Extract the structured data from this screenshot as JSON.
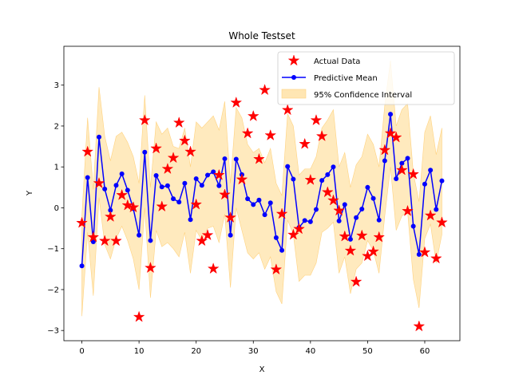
{
  "chart_data": {
    "type": "line",
    "title": "Whole Testset",
    "xlabel": "X",
    "ylabel": "Y",
    "xlim": [
      -3.15,
      66.15
    ],
    "ylim": [
      -3.25,
      3.95
    ],
    "xticks": [
      0,
      10,
      20,
      30,
      40,
      50,
      60
    ],
    "yticks": [
      -3,
      -2,
      -1,
      0,
      1,
      2,
      3
    ],
    "grid": false,
    "legend": "upper right",
    "colors": {
      "actual": "#ff0000",
      "mean": "#0000ff",
      "ci_fill": "#ffe6b3",
      "ci_edge": "#ffd27f"
    },
    "x": [
      0,
      1,
      2,
      3,
      4,
      5,
      6,
      7,
      8,
      9,
      10,
      11,
      12,
      13,
      14,
      15,
      16,
      17,
      18,
      19,
      20,
      21,
      22,
      23,
      24,
      25,
      26,
      27,
      28,
      29,
      30,
      31,
      32,
      33,
      34,
      35,
      36,
      37,
      38,
      39,
      40,
      41,
      42,
      43,
      44,
      45,
      46,
      47,
      48,
      49,
      50,
      51,
      52,
      53,
      54,
      55,
      56,
      57,
      58,
      59,
      60,
      61,
      62,
      63
    ],
    "series": [
      {
        "name": "Actual Data",
        "style": "star-markers",
        "values": [
          -0.37,
          1.37,
          -0.72,
          0.6,
          -0.81,
          -0.22,
          -0.81,
          0.31,
          0.06,
          0.01,
          -2.67,
          2.14,
          -1.47,
          1.45,
          0.03,
          0.95,
          1.22,
          2.08,
          1.64,
          1.37,
          0.08,
          -0.81,
          -0.67,
          -1.49,
          0.8,
          0.32,
          -0.24,
          2.57,
          0.69,
          1.82,
          2.24,
          1.19,
          2.88,
          1.77,
          -1.51,
          -0.15,
          2.39,
          -0.66,
          -0.52,
          1.56,
          0.68,
          2.14,
          1.75,
          0.38,
          0.18,
          -0.07,
          -0.7,
          -1.05,
          -1.81,
          -0.68,
          -1.18,
          -1.07,
          -0.72,
          1.41,
          1.82,
          1.72,
          0.92,
          -0.08,
          0.82,
          -2.9,
          -1.09,
          -0.19,
          -1.24,
          -0.36
        ]
      },
      {
        "name": "Predictive Mean",
        "style": "line-dots",
        "values": [
          -1.42,
          0.74,
          -0.83,
          1.73,
          0.46,
          -0.06,
          0.55,
          0.83,
          0.43,
          -0.02,
          -0.67,
          1.36,
          -0.8,
          0.79,
          0.51,
          0.54,
          0.22,
          0.14,
          0.6,
          -0.29,
          0.71,
          0.55,
          0.8,
          0.88,
          0.54,
          1.2,
          -0.67,
          1.19,
          0.81,
          0.22,
          0.08,
          0.19,
          -0.17,
          0.12,
          -0.73,
          -1.04,
          1.01,
          0.7,
          -0.48,
          -0.31,
          -0.34,
          -0.04,
          0.67,
          0.81,
          1.0,
          -0.32,
          0.08,
          -0.77,
          -0.24,
          -0.03,
          0.5,
          0.23,
          -0.3,
          1.15,
          2.29,
          0.71,
          1.09,
          1.21,
          -0.45,
          -1.14,
          0.58,
          0.92,
          -0.04,
          0.66
        ]
      },
      {
        "name": "95% Confidence Interval",
        "style": "band",
        "lower": [
          -2.65,
          -0.6,
          -2.15,
          0.25,
          -0.9,
          -1.25,
          -0.75,
          -0.45,
          -0.8,
          -1.25,
          -2.0,
          0.0,
          -2.2,
          -0.55,
          -0.95,
          -0.85,
          -1.0,
          -1.2,
          -0.6,
          -1.6,
          -0.55,
          -0.8,
          -0.5,
          -0.45,
          -0.85,
          -0.15,
          -1.95,
          0.0,
          -0.55,
          -1.1,
          -1.25,
          -1.1,
          -1.5,
          -1.2,
          -2.05,
          -2.35,
          -0.3,
          -0.65,
          -1.8,
          -1.65,
          -1.65,
          -1.35,
          -0.6,
          -0.5,
          -0.35,
          -1.6,
          -1.2,
          -2.1,
          -1.5,
          -1.35,
          -0.8,
          -1.05,
          -1.6,
          -0.2,
          1.0,
          -0.55,
          -0.2,
          -0.1,
          -1.75,
          -2.45,
          -0.75,
          -0.4,
          -1.35,
          -0.65
        ],
        "upper": [
          -0.2,
          2.2,
          0.45,
          2.95,
          1.75,
          1.15,
          1.75,
          1.85,
          1.6,
          1.25,
          0.6,
          2.75,
          0.5,
          2.1,
          1.8,
          1.95,
          1.5,
          1.45,
          1.95,
          1.0,
          2.1,
          1.95,
          2.1,
          2.25,
          1.9,
          2.6,
          0.6,
          2.45,
          2.2,
          1.55,
          1.35,
          1.45,
          1.1,
          1.45,
          0.6,
          0.3,
          2.3,
          2.0,
          0.8,
          0.95,
          0.95,
          1.25,
          1.95,
          2.15,
          2.4,
          1.0,
          1.35,
          0.5,
          1.05,
          1.25,
          1.8,
          1.55,
          1.0,
          2.5,
          3.6,
          2.0,
          2.4,
          2.55,
          0.85,
          0.15,
          1.85,
          2.25,
          1.3,
          1.95
        ]
      }
    ]
  }
}
